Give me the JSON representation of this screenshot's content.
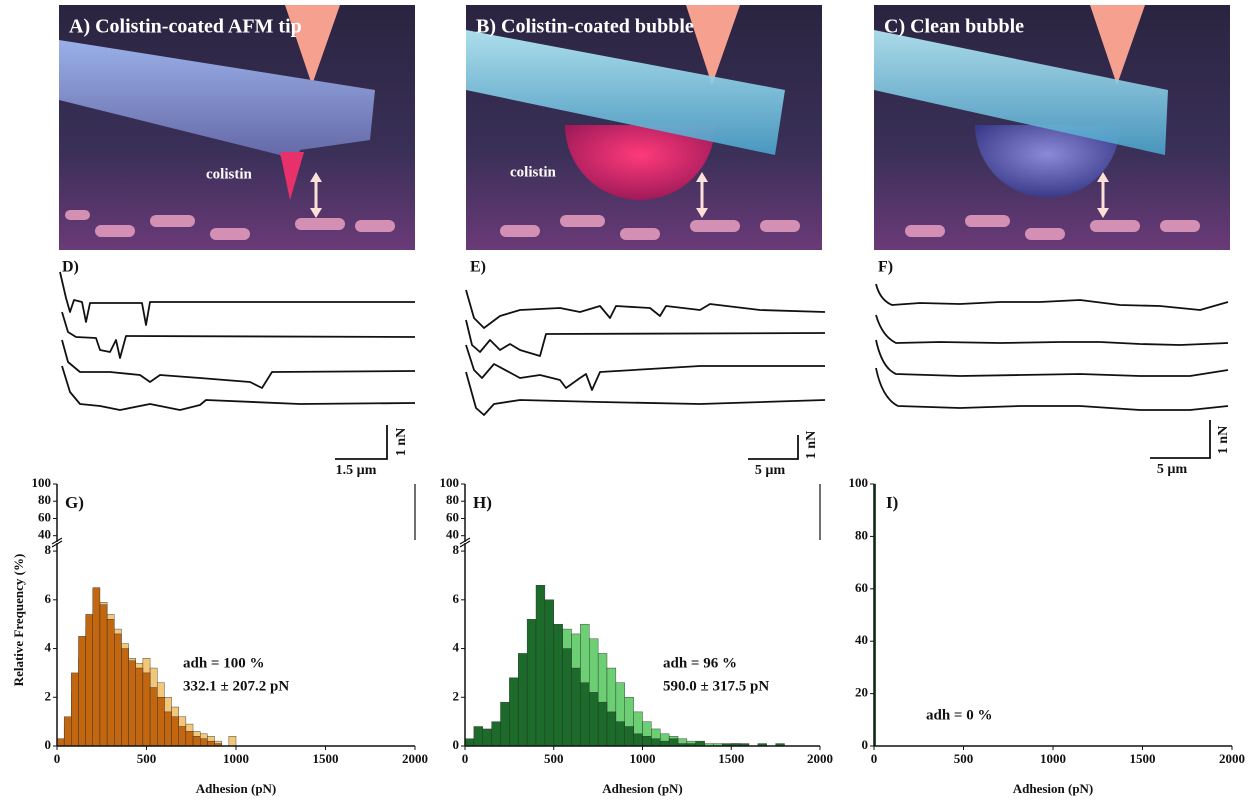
{
  "illustrations": [
    {
      "label": "A) Colistin-coated AFM tip",
      "annotation": "colistin"
    },
    {
      "label": "B) Colistin-coated bubble",
      "annotation": "colistin"
    },
    {
      "label": "C) Clean bubble"
    }
  ],
  "force_curves": [
    {
      "label": "D)",
      "scale_x": "1.5 µm",
      "scale_y": "1 nN"
    },
    {
      "label": "E)",
      "scale_x": "5 µm",
      "scale_y": "1 nN"
    },
    {
      "label": "F)",
      "scale_x": "5 µm",
      "scale_y": "1 nN"
    }
  ],
  "chart_data": [
    {
      "type": "histogram",
      "label": "G)",
      "xlabel": "Adhesion (pN)",
      "ylabel": "Relative Frequency (%)",
      "annotations": [
        "adh = 100 %",
        "332.1 ± 207.2 pN"
      ],
      "xlim": [
        0,
        2000
      ],
      "xticks": [
        0,
        500,
        1000,
        1500,
        2000
      ],
      "ylim": [
        0,
        8.25
      ],
      "yticks": [
        0,
        2,
        4,
        6,
        8
      ],
      "ylim_upper": [
        35,
        100
      ],
      "yticks_upper": [
        40,
        60,
        80,
        100
      ],
      "bins": [
        0,
        40,
        80,
        120,
        160,
        200,
        240,
        280,
        320,
        360,
        400,
        440,
        480,
        520,
        560,
        600,
        640,
        680,
        720,
        760,
        800,
        840,
        880,
        920,
        960,
        1000
      ],
      "series": [
        {
          "color": "#f3c77a",
          "values": [
            0.2,
            0.8,
            2.2,
            3.6,
            4.8,
            5.6,
            5.9,
            5.4,
            4.8,
            4.2,
            3.6,
            3.4,
            3.6,
            3.2,
            2.6,
            2.0,
            1.6,
            1.2,
            0.9,
            0.6,
            0.5,
            0.4,
            0.2,
            0,
            0.4
          ]
        },
        {
          "color": "#c2660f",
          "values": [
            0.3,
            1.2,
            3.0,
            4.5,
            5.4,
            6.5,
            5.8,
            5.2,
            4.6,
            4.0,
            3.5,
            3.2,
            3.0,
            2.4,
            2.0,
            1.4,
            1.2,
            0.8,
            0.6,
            0.4,
            0.3,
            0.2,
            0.1,
            0,
            0
          ]
        }
      ]
    },
    {
      "type": "histogram",
      "label": "H)",
      "xlabel": "Adhesion (pN)",
      "annotations": [
        "adh = 96 %",
        "590.0 ± 317.5 pN"
      ],
      "xlim": [
        0,
        2000
      ],
      "xticks": [
        0,
        500,
        1000,
        1500,
        2000
      ],
      "ylim": [
        0,
        8.25
      ],
      "yticks": [
        0,
        2,
        4,
        6,
        8
      ],
      "ylim_upper": [
        35,
        100
      ],
      "yticks_upper": [
        40,
        60,
        80,
        100
      ],
      "bins": [
        0,
        50,
        100,
        150,
        200,
        250,
        300,
        350,
        400,
        450,
        500,
        550,
        600,
        650,
        700,
        750,
        800,
        850,
        900,
        950,
        1000,
        1050,
        1100,
        1150,
        1200,
        1250,
        1300,
        1350,
        1400,
        1450,
        1500,
        1550,
        1600,
        1650,
        1700,
        1750,
        1800
      ],
      "series": [
        {
          "color": "#6ccf73",
          "values": [
            0.1,
            0.3,
            0.3,
            0.5,
            0.8,
            1.2,
            1.8,
            2.6,
            3.4,
            4.0,
            4.4,
            4.8,
            4.6,
            5.0,
            4.4,
            3.8,
            3.2,
            2.6,
            2.0,
            1.4,
            1.0,
            0.7,
            0.5,
            0.4,
            0.3,
            0.2,
            0.1,
            0.1,
            0.1,
            0,
            0.1,
            0,
            0,
            0,
            0,
            0
          ]
        },
        {
          "color": "#1d6b2b",
          "values": [
            0.3,
            0.8,
            0.7,
            1.0,
            1.8,
            2.8,
            3.8,
            5.2,
            6.6,
            6.0,
            5.0,
            4.0,
            3.2,
            2.6,
            2.2,
            1.8,
            1.4,
            1.0,
            0.8,
            0.5,
            0.4,
            0.3,
            0.2,
            0.3,
            0.1,
            0.1,
            0.2,
            0,
            0,
            0.1,
            0.1,
            0.1,
            0,
            0.1,
            0,
            0.1
          ]
        }
      ]
    },
    {
      "type": "histogram",
      "label": "I)",
      "xlabel": "Adhesion (pN)",
      "annotations": [
        "adh = 0 %"
      ],
      "xlim": [
        0,
        2000
      ],
      "xticks": [
        0,
        500,
        1000,
        1500,
        2000
      ],
      "ylim": [
        0,
        100
      ],
      "yticks": [
        0,
        20,
        40,
        60,
        80,
        100
      ],
      "bins": [
        0,
        10
      ],
      "series": [
        {
          "color": "#1d6b2b",
          "values": [
            100
          ]
        }
      ]
    }
  ]
}
